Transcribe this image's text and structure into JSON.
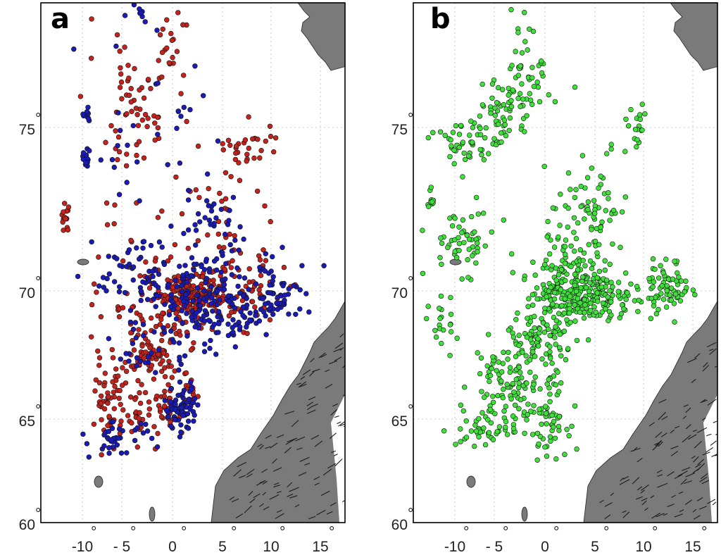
{
  "figure": {
    "panels": [
      {
        "label": "a",
        "series_colors": [
          "#c4231d",
          "#1a1ab4"
        ]
      },
      {
        "label": "b",
        "series_colors": [
          "#3fe03a"
        ]
      }
    ],
    "y_ticks": [
      "60",
      "65",
      "70",
      "75"
    ],
    "x_ticks": [
      "-10",
      "- 5",
      "0",
      "5",
      "10",
      "15"
    ],
    "degree_symbol": "°"
  },
  "chart_data": [
    {
      "type": "scatter",
      "panel": "a",
      "xlim": [
        -13.5,
        18
      ],
      "ylim": [
        60,
        79
      ],
      "grid": true,
      "series": [
        {
          "color": "#c4231d",
          "clusters": [
            {
              "x": 2.0,
              "y": 69.9,
              "sx": 2.2,
              "sy": 0.5,
              "n": 140
            },
            {
              "x": 6.5,
              "y": 70.0,
              "sx": 3.5,
              "sy": 0.9,
              "n": 70
            },
            {
              "x": -1.0,
              "y": 69.4,
              "sx": 4.5,
              "sy": 1.3,
              "n": 90
            },
            {
              "x": -2.5,
              "y": 67.6,
              "sx": 2.5,
              "sy": 0.7,
              "n": 70
            },
            {
              "x": -6.5,
              "y": 65.8,
              "sx": 1.3,
              "sy": 1.2,
              "n": 55
            },
            {
              "x": -0.5,
              "y": 65.7,
              "sx": 1.7,
              "sy": 1.2,
              "n": 50
            },
            {
              "x": -4.0,
              "y": 64.8,
              "sx": 1.0,
              "sy": 0.7,
              "n": 20
            },
            {
              "x": 2.0,
              "y": 66.0,
              "sx": 0.6,
              "sy": 0.4,
              "n": 12
            },
            {
              "x": -4.0,
              "y": 75.5,
              "sx": 1.8,
              "sy": 1.0,
              "n": 45
            },
            {
              "x": -0.3,
              "y": 77.3,
              "sx": 1.2,
              "sy": 1.0,
              "n": 22
            },
            {
              "x": 7.5,
              "y": 74.3,
              "sx": 2.5,
              "sy": 0.7,
              "n": 30
            },
            {
              "x": 5.5,
              "y": 72.2,
              "sx": 3.0,
              "sy": 0.9,
              "n": 28
            },
            {
              "x": -12.2,
              "y": 72.2,
              "sx": 0.4,
              "sy": 0.3,
              "n": 14
            },
            {
              "x": -4.0,
              "y": 73.5,
              "sx": 7.0,
              "sy": 3.5,
              "n": 35
            }
          ]
        },
        {
          "color": "#1a1ab4",
          "clusters": [
            {
              "x": 3.0,
              "y": 70.0,
              "sx": 4.0,
              "sy": 1.0,
              "n": 120
            },
            {
              "x": 10.5,
              "y": 69.8,
              "sx": 2.8,
              "sy": 0.8,
              "n": 70
            },
            {
              "x": -3.0,
              "y": 70.4,
              "sx": 4.0,
              "sy": 1.0,
              "n": 60
            },
            {
              "x": 6.0,
              "y": 68.7,
              "sx": 3.0,
              "sy": 0.6,
              "n": 45
            },
            {
              "x": -2.0,
              "y": 67.8,
              "sx": 3.0,
              "sy": 0.8,
              "n": 35
            },
            {
              "x": 0.8,
              "y": 65.4,
              "sx": 1.2,
              "sy": 0.6,
              "n": 70
            },
            {
              "x": -5.5,
              "y": 64.0,
              "sx": 2.5,
              "sy": 0.6,
              "n": 40
            },
            {
              "x": 4.0,
              "y": 72.0,
              "sx": 2.5,
              "sy": 0.8,
              "n": 35
            },
            {
              "x": -9.5,
              "y": 74.1,
              "sx": 0.5,
              "sy": 0.2,
              "n": 15
            },
            {
              "x": -9.3,
              "y": 75.3,
              "sx": 0.3,
              "sy": 0.2,
              "n": 8
            },
            {
              "x": -3.5,
              "y": 78.5,
              "sx": 1.0,
              "sy": 0.4,
              "n": 12
            },
            {
              "x": -2.0,
              "y": 74.5,
              "sx": 6.0,
              "sy": 2.5,
              "n": 30
            }
          ]
        }
      ]
    },
    {
      "type": "scatter",
      "panel": "b",
      "xlim": [
        -13.5,
        18
      ],
      "ylim": [
        60,
        79
      ],
      "grid": true,
      "series": [
        {
          "color": "#3fe03a",
          "clusters": [
            {
              "x": 3.0,
              "y": 70.0,
              "sx": 3.0,
              "sy": 0.9,
              "n": 280
            },
            {
              "x": 12.5,
              "y": 70.1,
              "sx": 1.5,
              "sy": 0.6,
              "n": 70
            },
            {
              "x": 7.5,
              "y": 69.6,
              "sx": 2.0,
              "sy": 0.7,
              "n": 40
            },
            {
              "x": 4.5,
              "y": 72.3,
              "sx": 3.0,
              "sy": 1.0,
              "n": 80
            },
            {
              "x": -0.5,
              "y": 68.0,
              "sx": 2.5,
              "sy": 0.8,
              "n": 80
            },
            {
              "x": -3.5,
              "y": 66.5,
              "sx": 3.0,
              "sy": 1.2,
              "n": 100
            },
            {
              "x": 0.5,
              "y": 65.0,
              "sx": 1.2,
              "sy": 1.2,
              "n": 55
            },
            {
              "x": -5.5,
              "y": 64.5,
              "sx": 3.0,
              "sy": 0.6,
              "n": 50
            },
            {
              "x": -9.0,
              "y": 71.5,
              "sx": 3.0,
              "sy": 0.7,
              "n": 55
            },
            {
              "x": -8.5,
              "y": 74.5,
              "sx": 3.0,
              "sy": 0.6,
              "n": 50
            },
            {
              "x": -4.0,
              "y": 75.5,
              "sx": 2.2,
              "sy": 0.8,
              "n": 60
            },
            {
              "x": -1.5,
              "y": 77.0,
              "sx": 1.5,
              "sy": 1.2,
              "n": 40
            },
            {
              "x": -11.0,
              "y": 68.5,
              "sx": 1.5,
              "sy": 0.8,
              "n": 20
            },
            {
              "x": 9.0,
              "y": 75.0,
              "sx": 1.2,
              "sy": 0.8,
              "n": 20
            },
            {
              "x": -13.0,
              "y": 72.8,
              "sx": 0.3,
              "sy": 0.4,
              "n": 12
            }
          ]
        }
      ]
    }
  ]
}
